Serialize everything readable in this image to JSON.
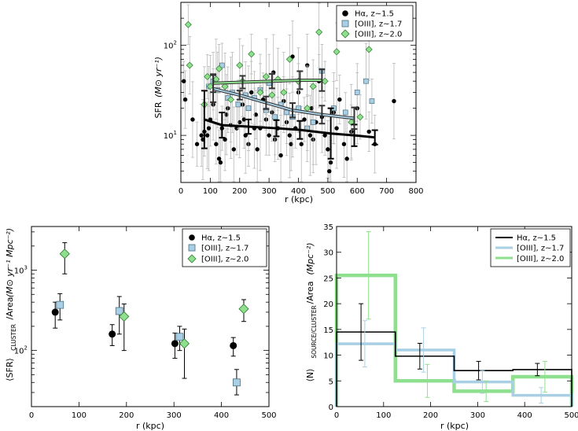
{
  "colors": {
    "halpha": "#000000",
    "oiii17_fill": "#a8cfe3",
    "oiii17_edge": "#4a6d80",
    "oiii20_fill": "#8ee08e",
    "oiii20_edge": "#2f7a2f",
    "errbar": "#b8b8b8"
  },
  "chart_data": [
    {
      "id": "top",
      "type": "scatter",
      "title": "",
      "xlabel": "r (kpc)",
      "ylabel": "SFR",
      "ylabel_units": "(M⊙ yr⁻¹)",
      "xlim": [
        0,
        800
      ],
      "ylim": [
        3,
        300
      ],
      "yscale": "log",
      "xticks": [
        "0",
        "100",
        "200",
        "300",
        "400",
        "500",
        "600",
        "700",
        "800"
      ],
      "yticks": [
        {
          "value": 10,
          "base": "10",
          "exp": "1"
        },
        {
          "value": 100,
          "base": "10",
          "exp": "2"
        }
      ],
      "legend": [
        "Hα, z∼1.5",
        "[OIII], z∼1.7",
        "[OIII], z∼2.0"
      ],
      "legend_loc": "top-right",
      "points_halpha": [
        [
          10,
          40
        ],
        [
          15,
          25
        ],
        [
          40,
          15
        ],
        [
          55,
          8
        ],
        [
          70,
          10
        ],
        [
          75,
          9
        ],
        [
          80,
          11
        ],
        [
          90,
          10
        ],
        [
          95,
          12
        ],
        [
          100,
          15
        ],
        [
          110,
          22
        ],
        [
          120,
          8
        ],
        [
          130,
          5.5
        ],
        [
          135,
          5
        ],
        [
          140,
          12
        ],
        [
          150,
          9
        ],
        [
          155,
          17
        ],
        [
          160,
          20
        ],
        [
          170,
          13
        ],
        [
          180,
          7
        ],
        [
          190,
          12
        ],
        [
          200,
          14
        ],
        [
          210,
          22
        ],
        [
          215,
          15
        ],
        [
          220,
          10
        ],
        [
          230,
          8
        ],
        [
          240,
          30
        ],
        [
          250,
          12
        ],
        [
          255,
          17
        ],
        [
          260,
          7
        ],
        [
          270,
          12
        ],
        [
          280,
          25
        ],
        [
          290,
          15
        ],
        [
          300,
          10
        ],
        [
          310,
          18
        ],
        [
          315,
          50
        ],
        [
          320,
          9
        ],
        [
          330,
          12
        ],
        [
          340,
          6
        ],
        [
          350,
          24
        ],
        [
          360,
          14
        ],
        [
          370,
          10
        ],
        [
          375,
          8
        ],
        [
          380,
          75
        ],
        [
          390,
          12
        ],
        [
          400,
          30
        ],
        [
          410,
          8
        ],
        [
          420,
          15
        ],
        [
          430,
          60
        ],
        [
          440,
          10
        ],
        [
          445,
          20
        ],
        [
          450,
          9
        ],
        [
          460,
          14
        ],
        [
          470,
          40
        ],
        [
          480,
          16
        ],
        [
          490,
          10
        ],
        [
          500,
          7
        ],
        [
          505,
          4
        ],
        [
          510,
          5
        ],
        [
          520,
          18
        ],
        [
          530,
          12
        ],
        [
          540,
          25
        ],
        [
          555,
          8
        ],
        [
          565,
          5.5
        ],
        [
          580,
          11
        ],
        [
          600,
          20
        ],
        [
          640,
          11
        ],
        [
          660,
          8
        ],
        [
          725,
          24
        ]
      ],
      "points_oiii17": [
        [
          95,
          35
        ],
        [
          110,
          40
        ],
        [
          125,
          32
        ],
        [
          140,
          60
        ],
        [
          160,
          26
        ],
        [
          175,
          30
        ],
        [
          195,
          22
        ],
        [
          220,
          28
        ],
        [
          230,
          20
        ],
        [
          250,
          26
        ],
        [
          270,
          32
        ],
        [
          290,
          19
        ],
        [
          300,
          38
        ],
        [
          320,
          16
        ],
        [
          340,
          22
        ],
        [
          360,
          18
        ],
        [
          380,
          16
        ],
        [
          400,
          20
        ],
        [
          430,
          12
        ],
        [
          450,
          14
        ],
        [
          480,
          52
        ],
        [
          520,
          20
        ],
        [
          560,
          18
        ],
        [
          600,
          30
        ],
        [
          630,
          40
        ],
        [
          650,
          24
        ]
      ],
      "points_oiii20": [
        [
          25,
          170
        ],
        [
          30,
          60
        ],
        [
          80,
          22
        ],
        [
          90,
          45
        ],
        [
          100,
          35
        ],
        [
          120,
          42
        ],
        [
          130,
          55
        ],
        [
          150,
          35
        ],
        [
          170,
          25
        ],
        [
          200,
          60
        ],
        [
          210,
          40
        ],
        [
          240,
          80
        ],
        [
          270,
          30
        ],
        [
          290,
          45
        ],
        [
          310,
          28
        ],
        [
          330,
          42
        ],
        [
          350,
          30
        ],
        [
          370,
          70
        ],
        [
          400,
          40
        ],
        [
          430,
          20
        ],
        [
          450,
          35
        ],
        [
          470,
          140
        ],
        [
          490,
          40
        ],
        [
          530,
          85
        ],
        [
          580,
          14
        ],
        [
          610,
          16
        ],
        [
          640,
          90
        ]
      ],
      "trend_halpha": {
        "x": [
          80,
          140,
          230,
          325,
          405,
          510,
          590,
          660
        ],
        "y": [
          15,
          13,
          12.5,
          12,
          11.5,
          10.5,
          10,
          9.5
        ],
        "err": [
          0.32,
          0.14,
          0.08,
          0.09,
          0.1,
          0.28,
          0.12,
          0.08
        ]
      },
      "trend_oiii17": {
        "x": [
          110,
          200,
          290,
          380,
          480,
          590
        ],
        "y": [
          33,
          28,
          23,
          19,
          17,
          15.5
        ],
        "err": [
          0.15,
          0.05,
          0.07,
          0.08,
          0.1,
          0.12
        ]
      },
      "trend_oiii20": {
        "x": [
          110,
          210,
          310,
          405,
          480
        ],
        "y": [
          38,
          39,
          40,
          41,
          41
        ],
        "err": [
          0.1,
          0.07,
          0.08,
          0.1,
          0.12
        ]
      }
    },
    {
      "id": "bottom-left",
      "type": "scatter",
      "title": "",
      "xlabel": "r (kpc)",
      "ylabel": "⟨SFR⟩CLUSTER /Area (M⊙ yr⁻¹ Mpc⁻²)",
      "ylabel_main": "⟨SFR⟩",
      "ylabel_sub": "CLUSTER",
      "ylabel_rest": "/Area",
      "ylabel_units": "(M⊙ yr⁻¹ Mpc⁻²)",
      "xlim": [
        0,
        500
      ],
      "ylim": [
        20,
        3500
      ],
      "yscale": "log",
      "xticks": [
        "0",
        "100",
        "200",
        "300",
        "400",
        "500"
      ],
      "yticks": [
        {
          "value": 100,
          "base": "10",
          "exp": "2"
        },
        {
          "value": 1000,
          "base": "10",
          "exp": "3"
        }
      ],
      "legend": [
        "Hα, z∼1.5",
        "[OIII], z∼1.7",
        "[OIII], z∼2.0"
      ],
      "legend_loc": "top-right",
      "series": [
        {
          "name": "Hα, z∼1.5",
          "x": [
            50,
            170,
            302,
            425
          ],
          "y": [
            300,
            160,
            122,
            115
          ],
          "lo": [
            190,
            115,
            80,
            85
          ],
          "hi": [
            400,
            210,
            165,
            145
          ]
        },
        {
          "name": "[OIII], z∼1.7",
          "x": [
            60,
            185,
            312,
            432
          ],
          "y": [
            370,
            310,
            148,
            40
          ],
          "lo": [
            240,
            160,
            100,
            28
          ],
          "hi": [
            510,
            470,
            200,
            58
          ]
        },
        {
          "name": "[OIII], z∼2.0",
          "x": [
            70,
            195,
            322,
            447
          ],
          "y": [
            1600,
            265,
            122,
            330
          ],
          "lo": [
            900,
            100,
            45,
            230
          ],
          "hi": [
            2200,
            380,
            185,
            430
          ]
        }
      ]
    },
    {
      "id": "bottom-right",
      "type": "bar",
      "title": "",
      "xlabel": "r (kpc)",
      "ylabel": "⟨N⟩SOURCE/CLUSTER /Area (Mpc⁻²)",
      "ylabel_main": "⟨N⟩",
      "ylabel_sub": "SOURCE/CLUSTER",
      "ylabel_rest": "/Area",
      "ylabel_units": "(Mpc⁻²)",
      "xlim": [
        0,
        500
      ],
      "ylim": [
        0,
        35
      ],
      "xticks": [
        "0",
        "100",
        "200",
        "300",
        "400",
        "500"
      ],
      "yticks": [
        "0",
        "5",
        "10",
        "15",
        "20",
        "25",
        "30",
        "35"
      ],
      "legend": [
        "Hα, z∼1.5",
        "[OIII], z∼1.7",
        "[OIII], z∼2.0"
      ],
      "legend_loc": "top-right",
      "bin_edges": [
        0,
        125,
        250,
        375,
        500
      ],
      "series": [
        {
          "name": "Hα, z∼1.5",
          "values": [
            14.5,
            9.8,
            7,
            7.2
          ],
          "err_x": [
            52,
            177,
            302,
            427
          ],
          "err": [
            5.5,
            2.5,
            1.8,
            1.2
          ]
        },
        {
          "name": "[OIII], z∼1.7",
          "values": [
            12.2,
            11,
            4.8,
            2.2
          ],
          "err_x": [
            60,
            185,
            310,
            435
          ],
          "err": [
            4.5,
            4.3,
            2.2,
            1.5
          ]
        },
        {
          "name": "[OIII], z∼2.0",
          "values": [
            25.5,
            5,
            3,
            5.8
          ],
          "err_x": [
            68,
            193,
            318,
            443
          ],
          "err": [
            8.5,
            3.2,
            2,
            3
          ]
        }
      ]
    }
  ]
}
